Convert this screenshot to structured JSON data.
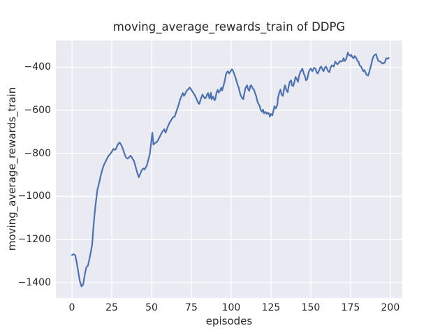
{
  "chart_data": {
    "type": "line",
    "title": "moving_average_rewards_train of DDPG",
    "xlabel": "episodes",
    "ylabel": "moving_average_rewards_train",
    "xlim": [
      -10.1,
      207.5
    ],
    "ylim": [
      -1471.8,
      -275.7
    ],
    "grid": true,
    "legend": "none",
    "xticks": [
      {
        "value": 0,
        "label": "0"
      },
      {
        "value": 25,
        "label": "25"
      },
      {
        "value": 50,
        "label": "50"
      },
      {
        "value": 75,
        "label": "75"
      },
      {
        "value": 100,
        "label": "100"
      },
      {
        "value": 125,
        "label": "125"
      },
      {
        "value": 150,
        "label": "150"
      },
      {
        "value": 175,
        "label": "175"
      },
      {
        "value": 200,
        "label": "200"
      }
    ],
    "yticks": [
      {
        "value": -400,
        "label": "−400"
      },
      {
        "value": -600,
        "label": "−600"
      },
      {
        "value": -800,
        "label": "−800"
      },
      {
        "value": -1000,
        "label": "−1000"
      },
      {
        "value": -1200,
        "label": "−1200"
      },
      {
        "value": -1400,
        "label": "−1400"
      }
    ],
    "style": {
      "axes_background": "#eaeaf2",
      "grid_color": "#ffffff",
      "line_color": "#4c72b0",
      "text_color": "#262626",
      "figure_background": "#ffffff"
    },
    "series": [
      {
        "color": "#4c72b0",
        "points": [
          [
            0,
            -1272
          ],
          [
            1,
            -1269
          ],
          [
            2,
            -1272
          ],
          [
            3,
            -1307
          ],
          [
            4,
            -1352
          ],
          [
            5,
            -1394
          ],
          [
            6,
            -1418
          ],
          [
            7,
            -1410
          ],
          [
            8,
            -1365
          ],
          [
            9,
            -1330
          ],
          [
            10,
            -1322
          ],
          [
            11,
            -1290
          ],
          [
            12,
            -1252
          ],
          [
            12.7,
            -1222
          ],
          [
            13.4,
            -1150
          ],
          [
            14.2,
            -1082
          ],
          [
            15,
            -1028
          ],
          [
            16,
            -968
          ],
          [
            17,
            -940
          ],
          [
            18,
            -905
          ],
          [
            19,
            -878
          ],
          [
            20,
            -855
          ],
          [
            21,
            -840
          ],
          [
            22,
            -824
          ],
          [
            23,
            -812
          ],
          [
            24,
            -803
          ],
          [
            25,
            -793
          ],
          [
            26,
            -779
          ],
          [
            27,
            -784
          ],
          [
            27.6,
            -780
          ],
          [
            28.5,
            -764
          ],
          [
            29.4,
            -753
          ],
          [
            30,
            -750
          ],
          [
            31,
            -762
          ],
          [
            32,
            -780
          ],
          [
            33,
            -801
          ],
          [
            34,
            -820
          ],
          [
            35,
            -824
          ],
          [
            36,
            -817
          ],
          [
            36.8,
            -811
          ],
          [
            37.3,
            -815
          ],
          [
            38.2,
            -827
          ],
          [
            39,
            -836
          ],
          [
            40,
            -862
          ],
          [
            41,
            -890
          ],
          [
            42,
            -911
          ],
          [
            43,
            -893
          ],
          [
            44,
            -876
          ],
          [
            45,
            -870
          ],
          [
            45.6,
            -875
          ],
          [
            46.5,
            -864
          ],
          [
            47,
            -856
          ],
          [
            48,
            -830
          ],
          [
            49,
            -800
          ],
          [
            50,
            -735
          ],
          [
            50.5,
            -704
          ],
          [
            51.2,
            -759
          ],
          [
            52.5,
            -751
          ],
          [
            53.5,
            -746
          ],
          [
            55,
            -725
          ],
          [
            55.7,
            -714
          ],
          [
            57,
            -697
          ],
          [
            58,
            -688
          ],
          [
            58.8,
            -704
          ],
          [
            60,
            -680
          ],
          [
            61,
            -662
          ],
          [
            62.3,
            -646
          ],
          [
            63.6,
            -631
          ],
          [
            64.5,
            -630
          ],
          [
            65.5,
            -608
          ],
          [
            66.7,
            -581
          ],
          [
            68,
            -549
          ],
          [
            69,
            -530
          ],
          [
            69.7,
            -520
          ],
          [
            70.3,
            -533
          ],
          [
            71,
            -525
          ],
          [
            72,
            -510
          ],
          [
            73,
            -503
          ],
          [
            74,
            -494
          ],
          [
            75.4,
            -510
          ],
          [
            76.5,
            -522
          ],
          [
            77.6,
            -536
          ],
          [
            78.5,
            -552
          ],
          [
            79.5,
            -568
          ],
          [
            80,
            -570
          ],
          [
            81,
            -545
          ],
          [
            82,
            -527
          ],
          [
            83.4,
            -545
          ],
          [
            84.3,
            -540
          ],
          [
            85,
            -524
          ],
          [
            85.5,
            -520
          ],
          [
            86.4,
            -545
          ],
          [
            87.3,
            -518
          ],
          [
            87.7,
            -549
          ],
          [
            88.6,
            -536
          ],
          [
            89.5,
            -553
          ],
          [
            90,
            -550
          ],
          [
            90.8,
            -517
          ],
          [
            91.6,
            -505
          ],
          [
            92.1,
            -518
          ],
          [
            93,
            -509
          ],
          [
            93.8,
            -495
          ],
          [
            94.3,
            -508
          ],
          [
            95.2,
            -486
          ],
          [
            96,
            -463
          ],
          [
            96.7,
            -435
          ],
          [
            97.4,
            -423
          ],
          [
            98,
            -419
          ],
          [
            98.8,
            -429
          ],
          [
            99.6,
            -419
          ],
          [
            100.4,
            -410
          ],
          [
            101,
            -413
          ],
          [
            101.8,
            -429
          ],
          [
            102.6,
            -445
          ],
          [
            103.2,
            -461
          ],
          [
            104,
            -480
          ],
          [
            104.8,
            -495
          ],
          [
            105.3,
            -512
          ],
          [
            106,
            -530
          ],
          [
            107,
            -545
          ],
          [
            107.6,
            -548
          ],
          [
            108.3,
            -520
          ],
          [
            109,
            -496
          ],
          [
            110,
            -484
          ],
          [
            110.5,
            -500
          ],
          [
            111.4,
            -510
          ],
          [
            112,
            -487
          ],
          [
            112.7,
            -484
          ],
          [
            113.6,
            -500
          ],
          [
            114.3,
            -504
          ],
          [
            115,
            -520
          ],
          [
            115.8,
            -536
          ],
          [
            116.2,
            -552
          ],
          [
            117,
            -568
          ],
          [
            118,
            -581
          ],
          [
            118.5,
            -597
          ],
          [
            119.3,
            -607
          ],
          [
            120,
            -597
          ],
          [
            120.6,
            -614
          ],
          [
            121.4,
            -607
          ],
          [
            122.4,
            -617
          ],
          [
            123,
            -611
          ],
          [
            123.7,
            -614
          ],
          [
            124.3,
            -630
          ],
          [
            125,
            -617
          ],
          [
            125.9,
            -623
          ],
          [
            126.7,
            -597
          ],
          [
            127.2,
            -581
          ],
          [
            128,
            -591
          ],
          [
            129,
            -575
          ],
          [
            129.4,
            -542
          ],
          [
            130.3,
            -516
          ],
          [
            131,
            -504
          ],
          [
            131.6,
            -526
          ],
          [
            132.5,
            -533
          ],
          [
            133.3,
            -500
          ],
          [
            133.8,
            -484
          ],
          [
            134.6,
            -504
          ],
          [
            135.5,
            -516
          ],
          [
            136,
            -494
          ],
          [
            136.8,
            -468
          ],
          [
            137.7,
            -461
          ],
          [
            138.2,
            -484
          ],
          [
            139,
            -487
          ],
          [
            140,
            -461
          ],
          [
            140.4,
            -445
          ],
          [
            141.2,
            -455
          ],
          [
            142,
            -468
          ],
          [
            142.5,
            -445
          ],
          [
            143.4,
            -423
          ],
          [
            144.3,
            -413
          ],
          [
            144.7,
            -406
          ],
          [
            145.6,
            -429
          ],
          [
            146.5,
            -445
          ],
          [
            147,
            -461
          ],
          [
            147.8,
            -455
          ],
          [
            148.7,
            -423
          ],
          [
            149.3,
            -413
          ],
          [
            150,
            -406
          ],
          [
            151,
            -419
          ],
          [
            151.4,
            -413
          ],
          [
            152,
            -403
          ],
          [
            153,
            -406
          ],
          [
            153.6,
            -423
          ],
          [
            154.4,
            -429
          ],
          [
            155.3,
            -413
          ],
          [
            156,
            -400
          ],
          [
            156.6,
            -397
          ],
          [
            157.5,
            -413
          ],
          [
            158,
            -419
          ],
          [
            158.8,
            -403
          ],
          [
            159.6,
            -397
          ],
          [
            160,
            -403
          ],
          [
            161,
            -419
          ],
          [
            161.8,
            -423
          ],
          [
            162.3,
            -403
          ],
          [
            163.2,
            -391
          ],
          [
            164,
            -394
          ],
          [
            164.5,
            -397
          ],
          [
            165.4,
            -374
          ],
          [
            166.7,
            -387
          ],
          [
            167.5,
            -381
          ],
          [
            168.4,
            -371
          ],
          [
            169,
            -374
          ],
          [
            170,
            -371
          ],
          [
            170.6,
            -358
          ],
          [
            171.2,
            -371
          ],
          [
            172,
            -365
          ],
          [
            172.8,
            -348
          ],
          [
            173.3,
            -332
          ],
          [
            174,
            -342
          ],
          [
            175,
            -348
          ],
          [
            175.4,
            -342
          ],
          [
            176.3,
            -355
          ],
          [
            177,
            -358
          ],
          [
            177.6,
            -348
          ],
          [
            178.5,
            -355
          ],
          [
            179.4,
            -371
          ],
          [
            180,
            -374
          ],
          [
            180.7,
            -391
          ],
          [
            181.6,
            -397
          ],
          [
            182.2,
            -406
          ],
          [
            183,
            -419
          ],
          [
            183.7,
            -413
          ],
          [
            184.3,
            -423
          ],
          [
            185,
            -435
          ],
          [
            186,
            -439
          ],
          [
            186.5,
            -429
          ],
          [
            187.3,
            -406
          ],
          [
            188,
            -387
          ],
          [
            188.7,
            -365
          ],
          [
            189.5,
            -348
          ],
          [
            190.3,
            -342
          ],
          [
            191,
            -339
          ],
          [
            191.6,
            -355
          ],
          [
            192.5,
            -371
          ],
          [
            193,
            -372
          ],
          [
            194,
            -376
          ],
          [
            195,
            -383
          ],
          [
            196,
            -380
          ],
          [
            196.5,
            -378
          ],
          [
            197.4,
            -358
          ],
          [
            198.2,
            -361
          ],
          [
            199,
            -357
          ]
        ]
      }
    ]
  }
}
